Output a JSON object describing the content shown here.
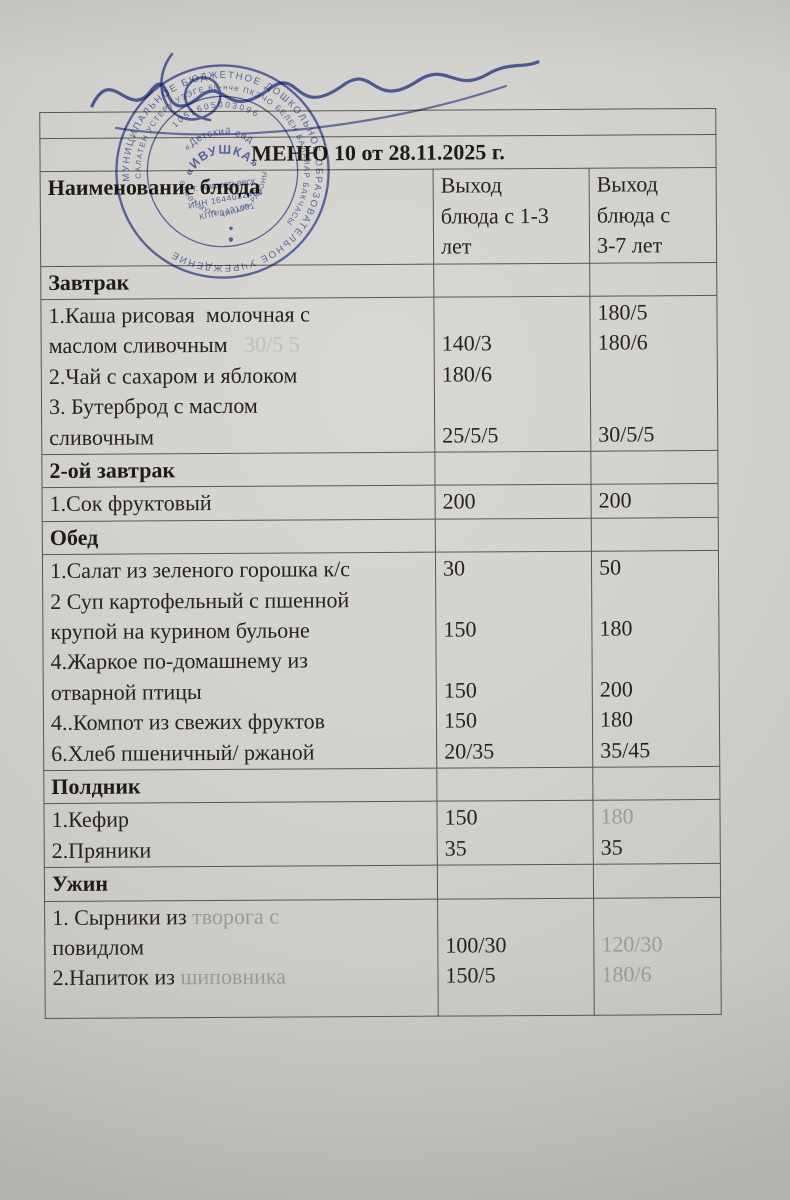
{
  "document": {
    "type_label": "Детское меню (скан документа)",
    "title": "МЕНЮ 10 от 28.11.2025 г."
  },
  "table": {
    "header": [
      "Наименование блюда",
      "Выход\nблюда с 1-3\nлет",
      "Выход\nблюда  с\n3-7 лет"
    ],
    "rows": [
      {
        "kind": "spacer"
      },
      {
        "kind": "title",
        "text": "МЕНЮ 10 от 28.11.2025 г."
      },
      {
        "kind": "header"
      },
      {
        "kind": "section",
        "text": "Завтрак"
      },
      {
        "kind": "items",
        "c1": [
          "1.Каша рисовая  молочная с",
          [
            {
              "t": "маслом сливочным"
            },
            {
              "t": "   30/5 5",
              "g": true
            }
          ],
          "2.Чай с сахаром и яблоком",
          "3. Бутерброд с маслом",
          "сливочным"
        ],
        "c2": [
          "",
          "140/3",
          "180/6",
          "",
          "25/5/5"
        ],
        "c3": [
          "180/5",
          "180/6",
          "",
          "",
          "30/5/5"
        ]
      },
      {
        "kind": "section",
        "text": "2-ой завтрак"
      },
      {
        "kind": "items",
        "c1": [
          "1.Сок фруктовый"
        ],
        "c2": [
          "200"
        ],
        "c3": [
          "200"
        ]
      },
      {
        "kind": "section",
        "text": "Обед"
      },
      {
        "kind": "items",
        "c1": [
          "1.Салат из зеленого горошка к/с",
          "2 Суп картофельный с пшенной",
          "крупой на курином бульоне",
          "4.Жаркое по-домашнему из",
          "отварной птицы",
          "4..Компот из свежих фруктов",
          "6.Хлеб пшеничный/ ржаной"
        ],
        "c2": [
          "30",
          "",
          "150",
          "",
          "150",
          "150",
          "20/35"
        ],
        "c3": [
          "50",
          "",
          "180",
          "",
          "200",
          "180",
          "35/45"
        ]
      },
      {
        "kind": "section",
        "text": "Полдник"
      },
      {
        "kind": "items",
        "c1": [
          "1.Кефир",
          "2.Пряники"
        ],
        "c2": [
          "150",
          "35"
        ],
        "c3": [
          [
            {
              "t": "180",
              "f": true
            }
          ],
          "35"
        ]
      },
      {
        "kind": "section",
        "text": "Ужин"
      },
      {
        "kind": "items",
        "last": true,
        "c1": [
          [
            {
              "t": "1. Сырники из "
            },
            {
              "t": "творога с",
              "f": true
            }
          ],
          "повидлом",
          [
            {
              "t": "2.Напиток из "
            },
            {
              "t": "шиповника",
              "f": true
            }
          ]
        ],
        "c2": [
          "",
          "100/30",
          "150/5"
        ],
        "c3": [
          "",
          [
            {
              "t": "120/30",
              "f": true
            }
          ],
          [
            {
              "t": "180/6",
              "f": true
            }
          ]
        ]
      }
    ]
  },
  "stamp": {
    "ring_outer": "МУНИЦИПАЛЬНОЕ БЮДЖЕТНОЕ ДОШКОЛЬНОЕ ОБРАЗОВАТЕЛЬНОЕ УЧРЕЖДЕНИЕ",
    "ring_middle": "САЛАТЕН УСТЕРУ УЗЭГЕ 65-нче ПКЭЧО БЕЛЕН БАЛАЛАР БАКЧАСЫ",
    "ogrn": "1051605003096",
    "center_small": "«Детский сад",
    "center_name": "«ИВУШКА»",
    "center_city": "г. Альметьевск",
    "inn": "ИНН 1644032483",
    "kpp": "КПП 1431001",
    "ring_bottom": "ӘЛМӘТ МУНИЦИПАЛЬ РАЙОНЫ"
  },
  "colors": {
    "paper": "#d1d0cc",
    "text": "#26231c",
    "faded_text": "#9c9a95",
    "table_line": "#59564f",
    "stamp_blue": "#4b5aad",
    "signature_blue": "#3c4da4"
  }
}
